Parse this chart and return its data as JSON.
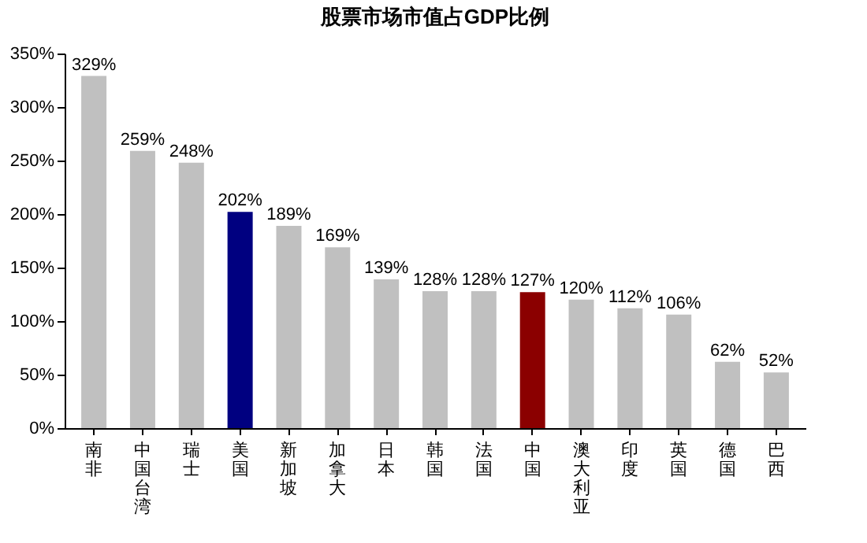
{
  "chart_data": {
    "type": "bar",
    "title": "股票市场市值占GDP比例",
    "categories": [
      "南非",
      "中国台湾",
      "瑞士",
      "美国",
      "新加坡",
      "加拿大",
      "日本",
      "韩国",
      "法国",
      "中国",
      "澳大利亚",
      "印度",
      "英国",
      "德国",
      "巴西"
    ],
    "values": [
      329,
      259,
      248,
      202,
      189,
      169,
      139,
      128,
      128,
      127,
      120,
      112,
      106,
      62,
      52
    ],
    "value_labels": [
      "329%",
      "259%",
      "248%",
      "202%",
      "189%",
      "169%",
      "139%",
      "128%",
      "128%",
      "127%",
      "120%",
      "112%",
      "106%",
      "62%",
      "52%"
    ],
    "colors": [
      "#c0c0c0",
      "#c0c0c0",
      "#c0c0c0",
      "#000080",
      "#c0c0c0",
      "#c0c0c0",
      "#c0c0c0",
      "#c0c0c0",
      "#c0c0c0",
      "#8b0000",
      "#c0c0c0",
      "#c0c0c0",
      "#c0c0c0",
      "#c0c0c0",
      "#c0c0c0"
    ],
    "ylim": [
      0,
      350
    ],
    "yticks": [
      {
        "value": 0,
        "label": "0%"
      },
      {
        "value": 50,
        "label": "50%"
      },
      {
        "value": 100,
        "label": "100%"
      },
      {
        "value": 150,
        "label": "150%"
      },
      {
        "value": 200,
        "label": "200%"
      },
      {
        "value": 250,
        "label": "250%"
      },
      {
        "value": 300,
        "label": "300%"
      },
      {
        "value": 350,
        "label": "350%"
      }
    ],
    "grid": false,
    "legend": false
  }
}
